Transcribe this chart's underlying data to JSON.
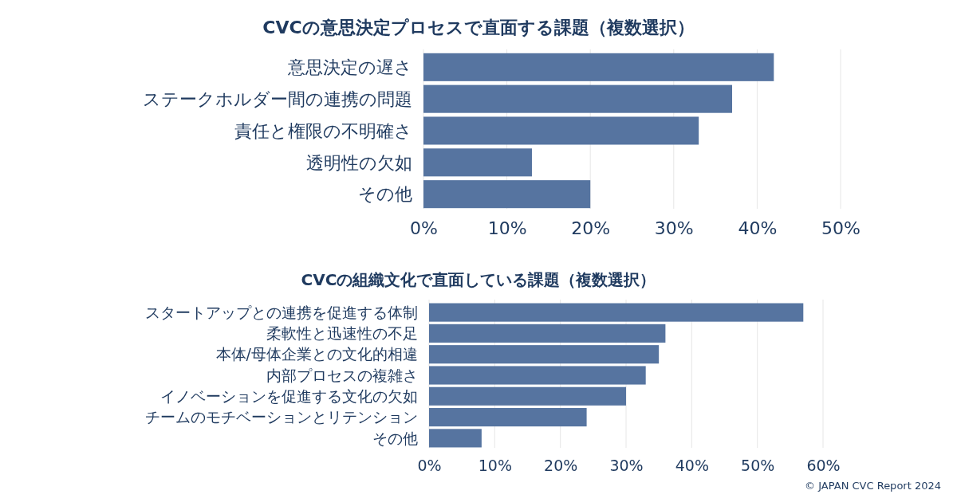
{
  "chart_data": [
    {
      "type": "bar",
      "orientation": "horizontal",
      "title": "CVCの意思決定プロセスで直面する課題（複数選択）",
      "categories": [
        "意思決定の遅さ",
        "ステークホルダー間の連携の問題",
        "責任と権限の不明確さ",
        "透明性の欠如",
        "その他"
      ],
      "values": [
        42,
        37,
        33,
        13,
        20
      ],
      "color": "#5674a0",
      "xlim": [
        0,
        50
      ],
      "xticks": [
        {
          "value": 0,
          "label": "0%"
        },
        {
          "value": 10,
          "label": "10%"
        },
        {
          "value": 20,
          "label": "20%"
        },
        {
          "value": 30,
          "label": "30%"
        },
        {
          "value": 40,
          "label": "40%"
        },
        {
          "value": 50,
          "label": "50%"
        }
      ],
      "grid": "x"
    },
    {
      "type": "bar",
      "orientation": "horizontal",
      "title": "CVCの組織文化で直面している課題（複数選択）",
      "categories": [
        "スタートアップとの連携を促進する体制",
        "柔軟性と迅速性の不足",
        "本体/母体企業との文化的相違",
        "内部プロセスの複雑さ",
        "イノベーションを促進する文化の欠如",
        "チームのモチベーションとリテンション",
        "その他"
      ],
      "values": [
        57,
        36,
        35,
        33,
        30,
        24,
        8
      ],
      "color": "#5674a0",
      "xlim": [
        0,
        60
      ],
      "xticks": [
        {
          "value": 0,
          "label": "0%"
        },
        {
          "value": 10,
          "label": "10%"
        },
        {
          "value": 20,
          "label": "20%"
        },
        {
          "value": 30,
          "label": "30%"
        },
        {
          "value": 40,
          "label": "40%"
        },
        {
          "value": 50,
          "label": "50%"
        },
        {
          "value": 60,
          "label": "60%"
        }
      ],
      "grid": "x",
      "annotations": [
        "© JAPAN CVC Report 2024"
      ]
    }
  ]
}
